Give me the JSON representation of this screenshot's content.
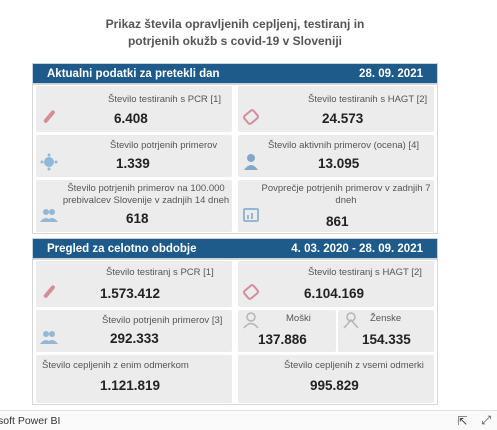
{
  "title_line1": "Prikaz števila opravljenih cepljenj, testiranj in",
  "title_line2": "potrjenih okužb s covid-19 v Sloveniji",
  "current": {
    "header_label": "Aktualni podatki za pretekli dan",
    "header_date": "28. 09. 2021",
    "pcr_label": "Število testiranih s PCR [1]",
    "pcr_value": "6.408",
    "hagt_label": "Število testiranih s HAGT [2]",
    "hagt_value": "24.573",
    "confirmed_label": "Število potrjenih primerov",
    "confirmed_value": "1.339",
    "active_label": "Število aktivnih primerov (ocena) [4]",
    "active_value": "13.095",
    "per100k_label_1": "Število potrjenih primerov na 100.000",
    "per100k_label_2": "prebivalcev Slovenije v zadnjih 14 dneh",
    "per100k_value": "618",
    "avg7_label_1": "Povprečje potrjenih primerov v zadnjih 7",
    "avg7_label_2": "dneh",
    "avg7_value": "861"
  },
  "overall": {
    "header_label": "Pregled za celotno obdobje",
    "header_date": "4. 03. 2020  -  28. 09. 2021",
    "pcr_label": "Število testiranj s PCR [1]",
    "pcr_value": "1.573.412",
    "hagt_label": "Število testiranj s HAGT [2]",
    "hagt_value": "6.104.169",
    "confirmed_label": "Število potrjenih primerov [3]",
    "confirmed_value": "292.333",
    "male_label": "Moški",
    "male_value": "137.886",
    "female_label": "Ženske",
    "female_value": "154.335",
    "vacc1_label": "Število cepljenih z enim odmerkom",
    "vacc1_value": "1.121.819",
    "vaccall_label": "Število cepljenih z vsemi odmerki",
    "vaccall_value": "995.829"
  },
  "footer": {
    "brand": "soft Power BI"
  },
  "colors": {
    "header_bg": "#1e5a8a",
    "card_bg": "#ececec"
  }
}
